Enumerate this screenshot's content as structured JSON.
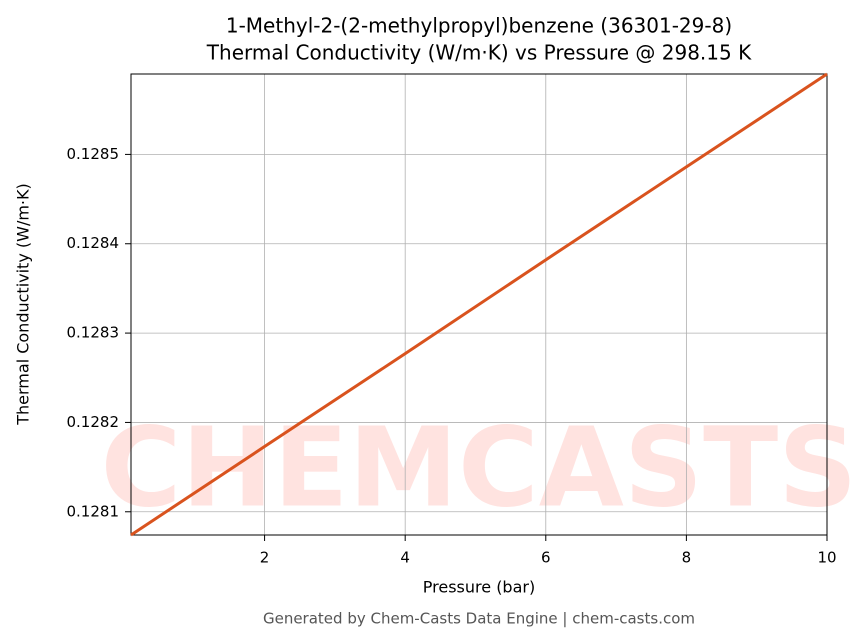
{
  "chart_data": {
    "type": "line",
    "title": "1-Methyl-2-(2-methylpropyl)benzene (36301-29-8)",
    "subtitle": "Thermal Conductivity (W/m·K) vs Pressure @ 298.15 K",
    "x_label": "Pressure (bar)",
    "y_label": "Thermal Conductivity (W/m·K)",
    "footer": "Generated by Chem-Casts Data Engine | chem-casts.com",
    "watermark": "CHEMCASTS",
    "x": [
      0.1,
      2,
      4,
      6,
      8,
      10
    ],
    "series": [
      {
        "color": "#d9531e",
        "values": [
          0.128074,
          0.128173,
          0.128277,
          0.128382,
          0.128486,
          0.12859
        ]
      }
    ],
    "xlim": [
      0.1,
      10
    ],
    "xticks": [
      2,
      4,
      6,
      8,
      10
    ],
    "ylim": [
      0.128074,
      0.12859
    ],
    "yticks": [
      0.1281,
      0.1282,
      0.1283,
      0.1284,
      0.1285
    ],
    "grid": true
  }
}
